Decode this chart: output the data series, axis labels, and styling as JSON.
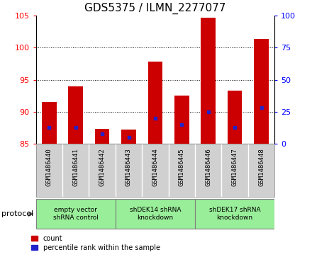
{
  "title": "GDS5375 / ILMN_2277077",
  "samples": [
    "GSM1486440",
    "GSM1486441",
    "GSM1486442",
    "GSM1486443",
    "GSM1486444",
    "GSM1486445",
    "GSM1486446",
    "GSM1486447",
    "GSM1486448"
  ],
  "count_values": [
    91.5,
    94.0,
    87.3,
    87.2,
    97.8,
    92.5,
    104.7,
    93.3,
    101.3
  ],
  "percentile_values": [
    13.0,
    13.0,
    8.0,
    5.0,
    20.0,
    15.0,
    25.0,
    13.0,
    28.0
  ],
  "bar_bottom": 85.0,
  "ylim_left": [
    85,
    105
  ],
  "ylim_right": [
    0,
    100
  ],
  "yticks_left": [
    85,
    90,
    95,
    100,
    105
  ],
  "yticks_right": [
    0,
    25,
    50,
    75,
    100
  ],
  "bar_color": "#cc0000",
  "percentile_color": "#2222cc",
  "grid_color": "#000000",
  "bg_color": "#ffffff",
  "label_bg_color": "#d0d0d0",
  "protocol_groups": [
    {
      "label": "empty vector\nshRNA control",
      "start": 0,
      "end": 2,
      "color": "#99ee99"
    },
    {
      "label": "shDEK14 shRNA\nknockdown",
      "start": 3,
      "end": 5,
      "color": "#99ee99"
    },
    {
      "label": "shDEK17 shRNA\nknockdown",
      "start": 6,
      "end": 8,
      "color": "#99ee99"
    }
  ],
  "legend_items": [
    {
      "label": "count",
      "color": "#cc0000"
    },
    {
      "label": "percentile rank within the sample",
      "color": "#2222cc"
    }
  ],
  "title_fontsize": 11,
  "bar_width": 0.55
}
